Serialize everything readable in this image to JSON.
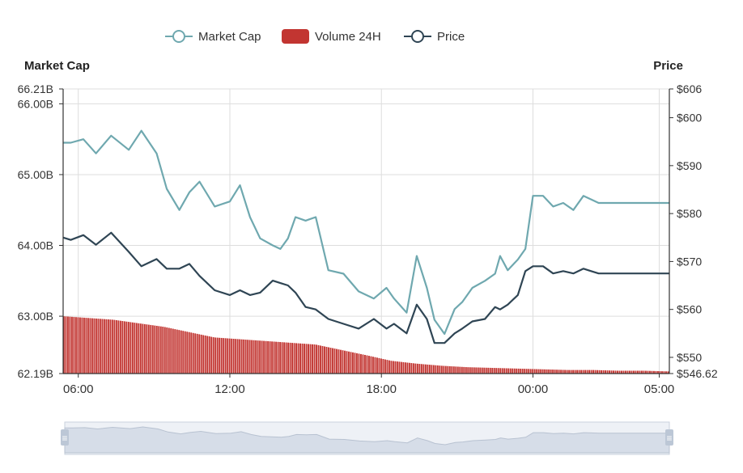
{
  "colors": {
    "market_cap": "#6fa8af",
    "volume": "#c23531",
    "price": "#2f4554",
    "grid": "#dddddd",
    "axis": "#333333",
    "slider_fill": "#d6dde8",
    "slider_line": "#b8c2d1"
  },
  "legend": {
    "market_cap": "Market Cap",
    "volume": "Volume 24H",
    "price": "Price"
  },
  "chart_data": {
    "type": "line",
    "x_axis": {
      "tick_labels": [
        "06:00",
        "12:00",
        "18:00",
        "00:00",
        "05:00"
      ],
      "tick_hours": [
        0.6,
        6.6,
        12.6,
        18.6,
        23.6
      ],
      "range_hours": [
        0,
        24
      ]
    },
    "y_left": {
      "title": "Market Cap",
      "tick_labels": [
        "66.21B",
        "66.00B",
        "65.00B",
        "64.00B",
        "63.00B",
        "62.19B"
      ],
      "tick_values": [
        66.21,
        66.0,
        65.0,
        64.0,
        63.0,
        62.19
      ],
      "range": [
        62.19,
        66.21
      ],
      "unit": "B"
    },
    "y_right": {
      "title": "Price",
      "tick_labels": [
        "$606",
        "$600",
        "$590",
        "$580",
        "$570",
        "$560",
        "$550",
        "$546.62"
      ],
      "tick_values": [
        606,
        600,
        590,
        580,
        570,
        560,
        550,
        546.62
      ],
      "range": [
        546.62,
        606
      ]
    },
    "grid": true,
    "legend_position": "top-center",
    "series": [
      {
        "name": "Market Cap",
        "axis": "left",
        "x": [
          0,
          0.3,
          0.8,
          1.3,
          1.9,
          2.6,
          3.1,
          3.7,
          4.1,
          4.6,
          5.0,
          5.4,
          6.0,
          6.6,
          7.0,
          7.4,
          7.8,
          8.3,
          8.6,
          8.9,
          9.2,
          9.6,
          10.0,
          10.5,
          11.1,
          11.7,
          12.3,
          12.8,
          13.1,
          13.6,
          14.0,
          14.4,
          14.7,
          15.1,
          15.5,
          15.8,
          16.2,
          16.7,
          17.1,
          17.3,
          17.6,
          18.0,
          18.3,
          18.6,
          19.0,
          19.4,
          19.8,
          20.2,
          20.6,
          20.9,
          21.2,
          21.6,
          22.1,
          22.6,
          22.9,
          23.2,
          23.6,
          24.0
        ],
        "values": [
          65.45,
          65.45,
          65.5,
          65.3,
          65.55,
          65.35,
          65.62,
          65.3,
          64.8,
          64.5,
          64.75,
          64.9,
          64.55,
          64.62,
          64.85,
          64.4,
          64.1,
          64.0,
          63.95,
          64.1,
          64.4,
          64.35,
          64.4,
          63.65,
          63.6,
          63.35,
          63.25,
          63.4,
          63.25,
          63.05,
          63.85,
          63.4,
          62.95,
          62.75,
          63.1,
          63.2,
          63.4,
          63.5,
          63.6,
          63.85,
          63.65,
          63.8,
          63.95,
          64.7,
          64.7,
          64.55,
          64.6,
          64.5,
          64.7,
          64.65,
          64.6,
          64.6,
          64.6,
          64.6,
          64.6,
          64.6,
          64.6,
          64.6
        ]
      },
      {
        "name": "Price",
        "axis": "right",
        "x": [
          0,
          0.3,
          0.8,
          1.3,
          1.9,
          2.6,
          3.1,
          3.7,
          4.1,
          4.6,
          5.0,
          5.4,
          6.0,
          6.6,
          7.0,
          7.4,
          7.8,
          8.3,
          8.6,
          8.9,
          9.2,
          9.6,
          10.0,
          10.5,
          11.1,
          11.7,
          12.3,
          12.8,
          13.1,
          13.6,
          14.0,
          14.4,
          14.7,
          15.1,
          15.5,
          15.8,
          16.2,
          16.7,
          17.1,
          17.3,
          17.6,
          18.0,
          18.3,
          18.6,
          19.0,
          19.4,
          19.8,
          20.2,
          20.6,
          20.9,
          21.2,
          21.6,
          22.1,
          22.6,
          22.9,
          23.2,
          23.6,
          24.0
        ],
        "values": [
          575,
          574.5,
          575.5,
          573.5,
          576,
          572,
          569,
          570.5,
          568.5,
          568.5,
          569.5,
          567,
          564,
          563,
          564,
          563,
          563.5,
          566,
          565.5,
          565,
          563.5,
          560.5,
          560,
          558,
          557,
          556,
          558,
          556,
          557,
          555,
          561,
          558,
          553,
          553,
          555,
          556,
          557.5,
          558,
          560.5,
          560,
          561,
          563,
          568,
          569,
          569,
          567.5,
          568,
          567.5,
          568.5,
          568,
          567.5,
          567.5,
          567.5,
          567.5,
          567.5,
          567.5,
          567.5,
          567.5
        ]
      },
      {
        "name": "Volume 24H",
        "axis": "left",
        "type": "bar",
        "x": [
          0,
          2,
          4,
          6,
          8,
          10,
          12,
          13,
          14,
          15,
          16,
          17,
          18,
          19,
          20,
          21,
          22,
          23,
          24
        ],
        "values": [
          63.0,
          62.95,
          62.85,
          62.7,
          62.65,
          62.6,
          62.45,
          62.37,
          62.33,
          62.3,
          62.28,
          62.27,
          62.26,
          62.25,
          62.24,
          62.24,
          62.23,
          62.23,
          62.22
        ]
      }
    ]
  },
  "slider": {
    "handle_left": "≡",
    "handle_right": "≡"
  }
}
